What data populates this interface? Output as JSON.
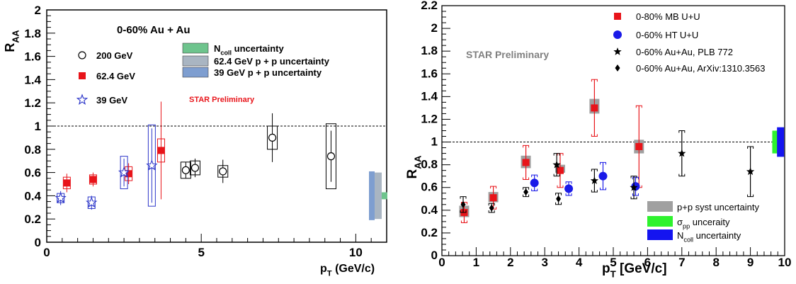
{
  "chart_data": [
    {
      "type": "scatter",
      "title": "0-60% Au + Au",
      "ylabel_main": "R",
      "ylabel_sub": "AA",
      "xlabel_main": "p",
      "xlabel_sub": "T",
      "xlabel_rest": " (GeV/c)",
      "xlim": [
        0,
        11
      ],
      "ylim": [
        0,
        2
      ],
      "x_ticks": [
        0,
        5,
        10
      ],
      "x_tick_labels": [
        "0",
        "5",
        "10"
      ],
      "y_ticks": [
        0,
        0.2,
        0.4,
        0.6,
        0.8,
        1,
        1.2,
        1.4,
        1.6,
        1.8,
        2
      ],
      "y_tick_labels": [
        "0",
        "0.2",
        "0.4",
        "0.6",
        "0.8",
        "1",
        "1.2",
        "1.4",
        "1.6",
        "1.8",
        "2"
      ],
      "reference_line": 1,
      "annotation": "STAR Preliminary",
      "annotation_color": "#e8141a",
      "series": [
        {
          "name": "200 GeV",
          "marker": "open-circle",
          "color": "#000000",
          "x": [
            4.5,
            4.8,
            5.7,
            7.3,
            9.2
          ],
          "y": [
            0.62,
            0.64,
            0.61,
            0.9,
            0.74
          ],
          "stat_err": [
            0.07,
            0.08,
            0.1,
            0.21,
            0.22
          ],
          "syst_err": [
            0.07,
            0.06,
            0.05,
            0.1,
            0.28
          ]
        },
        {
          "name": "62.4 GeV",
          "marker": "filled-square",
          "color": "#e8141a",
          "x": [
            0.65,
            1.5,
            2.65,
            3.7
          ],
          "y": [
            0.51,
            0.54,
            0.59,
            0.79
          ],
          "stat_err": [
            0.08,
            0.06,
            0.09,
            0.42
          ],
          "syst_err": [
            0.05,
            0.04,
            0.06,
            0.1
          ]
        },
        {
          "name": "39 GeV",
          "marker": "open-star",
          "color": "#2b35c9",
          "x": [
            0.45,
            1.45,
            2.5,
            3.4
          ],
          "y": [
            0.38,
            0.34,
            0.6,
            0.66
          ],
          "stat_err": [
            0.06,
            0.06,
            0.12,
            0.32
          ],
          "syst_err": [
            0.04,
            0.05,
            0.14,
            0.35
          ]
        }
      ],
      "uncertainty_bands": [
        {
          "name": "N",
          "name_sub": "coll",
          "name_rest": " uncertainty",
          "color": "#6ec48d",
          "y_low": 0.37,
          "y_high": 0.43
        },
        {
          "name": "62.4 GeV p + p uncertainty",
          "color": "#a9b5c2",
          "y_low": 0.2,
          "y_high": 0.6
        },
        {
          "name": "39 GeV p + p uncertainty",
          "color": "#7e9ed0",
          "y_low": 0.19,
          "y_high": 0.61
        }
      ]
    },
    {
      "type": "scatter",
      "ylabel_main": "R",
      "ylabel_sub": "AA",
      "xlabel_main": "p",
      "xlabel_sub": "T",
      "xlabel_rest": " [GeV/c]",
      "xlim": [
        0,
        10
      ],
      "ylim": [
        0,
        2.2
      ],
      "x_ticks": [
        0,
        1,
        2,
        3,
        4,
        5,
        6,
        7,
        8,
        9,
        10
      ],
      "x_tick_labels": [
        "0",
        "1",
        "2",
        "3",
        "4",
        "5",
        "6",
        "7",
        "8",
        "9",
        "10"
      ],
      "y_ticks": [
        0,
        0.2,
        0.4,
        0.6,
        0.8,
        1,
        1.2,
        1.4,
        1.6,
        1.8,
        2,
        2.2
      ],
      "y_tick_labels": [
        "0",
        "0.2",
        "0.4",
        "0.6",
        "0.8",
        "1",
        "1.2",
        "1.4",
        "1.6",
        "1.8",
        "2",
        "2.2"
      ],
      "reference_line": 1,
      "annotation": "STAR Preliminary",
      "annotation_color": "#808080",
      "series": [
        {
          "name": "0-80% MB U+U",
          "marker": "filled-square",
          "color": "#e8141a",
          "x": [
            0.65,
            1.5,
            2.45,
            3.45,
            4.45,
            5.75
          ],
          "y": [
            0.38,
            0.51,
            0.82,
            0.75,
            1.3,
            0.96
          ],
          "stat_err": [
            0.09,
            0.1,
            0.15,
            0.15,
            0.25,
            0.36
          ]
        },
        {
          "name": "0-60% HT U+U",
          "marker": "filled-circle",
          "color": "#1a1ae8",
          "x": [
            2.7,
            3.7,
            4.7,
            5.65
          ],
          "y": [
            0.64,
            0.59,
            0.7,
            0.61
          ],
          "stat_err": [
            0.07,
            0.06,
            0.12,
            0.08
          ]
        },
        {
          "name": "0-60% Au+Au, PLB 772",
          "marker": "filled-star",
          "color": "#000000",
          "x": [
            3.35,
            4.45,
            5.6,
            7.0,
            9.0
          ],
          "y": [
            0.8,
            0.66,
            0.6,
            0.9,
            0.74
          ],
          "stat_err": [
            0.1,
            0.1,
            0.1,
            0.2,
            0.22
          ]
        },
        {
          "name": "0-60% Au+Au, ArXiv:1310.3563",
          "marker": "filled-diamond",
          "color": "#000000",
          "x": [
            0.62,
            1.45,
            2.45,
            3.4
          ],
          "y": [
            0.45,
            0.42,
            0.56,
            0.5
          ],
          "stat_err": [
            0.07,
            0.04,
            0.04,
            0.05
          ]
        }
      ],
      "syst_boxes": [
        {
          "x": 0.65,
          "y_low": 0.34,
          "y_high": 0.44
        },
        {
          "x": 1.5,
          "y_low": 0.47,
          "y_high": 0.56
        },
        {
          "x": 2.45,
          "y_low": 0.77,
          "y_high": 0.88
        },
        {
          "x": 3.45,
          "y_low": 0.73,
          "y_high": 0.8
        },
        {
          "x": 4.45,
          "y_low": 1.25,
          "y_high": 1.38
        },
        {
          "x": 5.75,
          "y_low": 0.9,
          "y_high": 1.02
        }
      ],
      "uncertainty_bands": [
        {
          "name": "p+p syst uncertainty",
          "color": "#a0a0a0",
          "x": 9.72,
          "y_low": 0,
          "y_high": 0
        },
        {
          "name": "σ",
          "name_sub": "pp",
          "name_rest": " unceraity",
          "color": "#2ef22e",
          "x": 9.72,
          "y_low": 0.9,
          "y_high": 1.1
        },
        {
          "name": "N",
          "name_sub": "coll",
          "name_rest": " uncertainty",
          "color": "#1414f0",
          "x": 9.88,
          "y_low": 0.87,
          "y_high": 1.13
        }
      ]
    }
  ]
}
